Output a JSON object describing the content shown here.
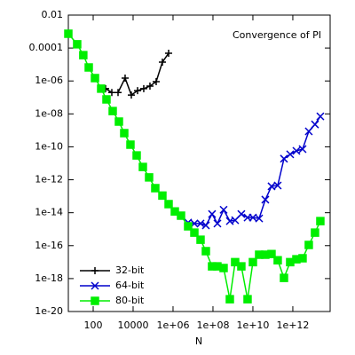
{
  "chart_data": {
    "type": "line",
    "title": "Convergence of PI",
    "xlabel": "N",
    "xscale": "log",
    "yscale": "log",
    "legend": "bottom-left",
    "xlim": [
      5.7,
      74000000000000.0
    ],
    "ylim": [
      1e-20,
      0.01
    ],
    "xticks": [
      100,
      10000,
      {
        "value": 1000000.0,
        "label": "1e+06"
      },
      {
        "value": 100000000.0,
        "label": "1e+08"
      },
      {
        "value": 10000000000.0,
        "label": "1e+10"
      },
      {
        "value": 1000000000000.0,
        "label": "1e+12"
      }
    ],
    "yticks": [
      0.01,
      0.0001,
      {
        "value": 1e-06,
        "label": "1e-06"
      },
      {
        "value": 1e-08,
        "label": "1e-08"
      },
      {
        "value": 1e-10,
        "label": "1e-10"
      },
      {
        "value": 1e-12,
        "label": "1e-12"
      },
      {
        "value": 1e-14,
        "label": "1e-14"
      },
      {
        "value": 1e-16,
        "label": "1e-16"
      },
      {
        "value": 1e-18,
        "label": "1e-18"
      },
      {
        "value": 1e-20,
        "label": "1e-20"
      }
    ],
    "series": [
      {
        "name": "32-bit",
        "color": "#000000",
        "marker": "plus",
        "x": [
          419,
          858,
          1760,
          3980,
          8150,
          16700,
          34100,
          69800,
          143000,
          293000,
          600000
        ],
        "values": [
          3.4e-07,
          2e-07,
          2e-07,
          1.5e-06,
          1.4e-07,
          2.6e-07,
          3.4e-07,
          4.9e-07,
          9.1e-07,
          1.4e-05,
          4.8e-05
        ]
      },
      {
        "name": "64-bit",
        "color": "#0000cc",
        "marker": "cross",
        "x": [
          5700000.0,
          11700000.0,
          23900000.0,
          44100000.0,
          90000000.0,
          167000000.0,
          341000000.0,
          700000000.0,
          1290000000.0,
          2640000000.0,
          5410000000.0,
          10000000000.0,
          20500000000.0,
          41900000000.0,
          85700000000.0,
          175000000000.0,
          360000000000.0,
          736000000000.0,
          1510000000000.0,
          3080000000000.0,
          6300000000000.0,
          12900000000000.0,
          23900000000000.0
        ],
        "values": [
          2.5e-15,
          2.2e-15,
          2.2e-15,
          1.7e-15,
          8.3e-15,
          2.2e-15,
          1.5e-14,
          3.1e-15,
          3.5e-15,
          8.3e-15,
          5.1e-15,
          5.1e-15,
          4.5e-15,
          6.2e-14,
          4e-13,
          4.5e-13,
          1.9e-11,
          3.5e-11,
          5.7e-11,
          7.3e-11,
          8.7e-10,
          2.3e-09,
          7.1e-09
        ]
      },
      {
        "name": "80-bit",
        "color": "#00ee00",
        "marker": "box",
        "x": [
          5.7,
          15.8,
          32,
          60,
          123,
          251,
          464,
          950,
          1945,
          3594,
          7362,
          15070,
          30830,
          63100,
          129000,
          293000,
          600000,
          1230000.0,
          2510000.0,
          5700000.0,
          11700000.0,
          23900000.0,
          44100000.0,
          90000000.0,
          167000000.0,
          341000000.0,
          700000000.0,
          1290000000.0,
          2640000000.0,
          5410000000.0,
          10000000000.0,
          20500000000.0,
          41900000000.0,
          85700000000.0,
          175000000000.0,
          360000000000.0,
          736000000000.0,
          1510000000000.0,
          3080000000000.0,
          6300000000000.0,
          12900000000000.0,
          23900000000000.0
        ],
        "values": [
          0.00074,
          0.00017,
          3.7e-05,
          6.6e-06,
          1.5e-06,
          3.4e-07,
          7.6e-08,
          1.5e-08,
          3.4e-09,
          6.8e-10,
          1.35e-10,
          3e-11,
          6e-12,
          1.4e-12,
          3.1e-13,
          1.1e-13,
          3.3e-14,
          1.2e-14,
          6.6e-15,
          1.5e-15,
          6.2e-16,
          2.3e-16,
          4.6e-17,
          5.5e-18,
          5.5e-18,
          4.4e-18,
          5.6e-20,
          1e-17,
          5.5e-18,
          5.6e-20,
          1e-17,
          2.8e-17,
          2.8e-17,
          3.1e-17,
          1.3e-17,
          1.1e-18,
          1e-17,
          1.5e-17,
          1.7e-17,
          1.1e-16,
          6.2e-16,
          3.1e-15
        ]
      }
    ]
  }
}
